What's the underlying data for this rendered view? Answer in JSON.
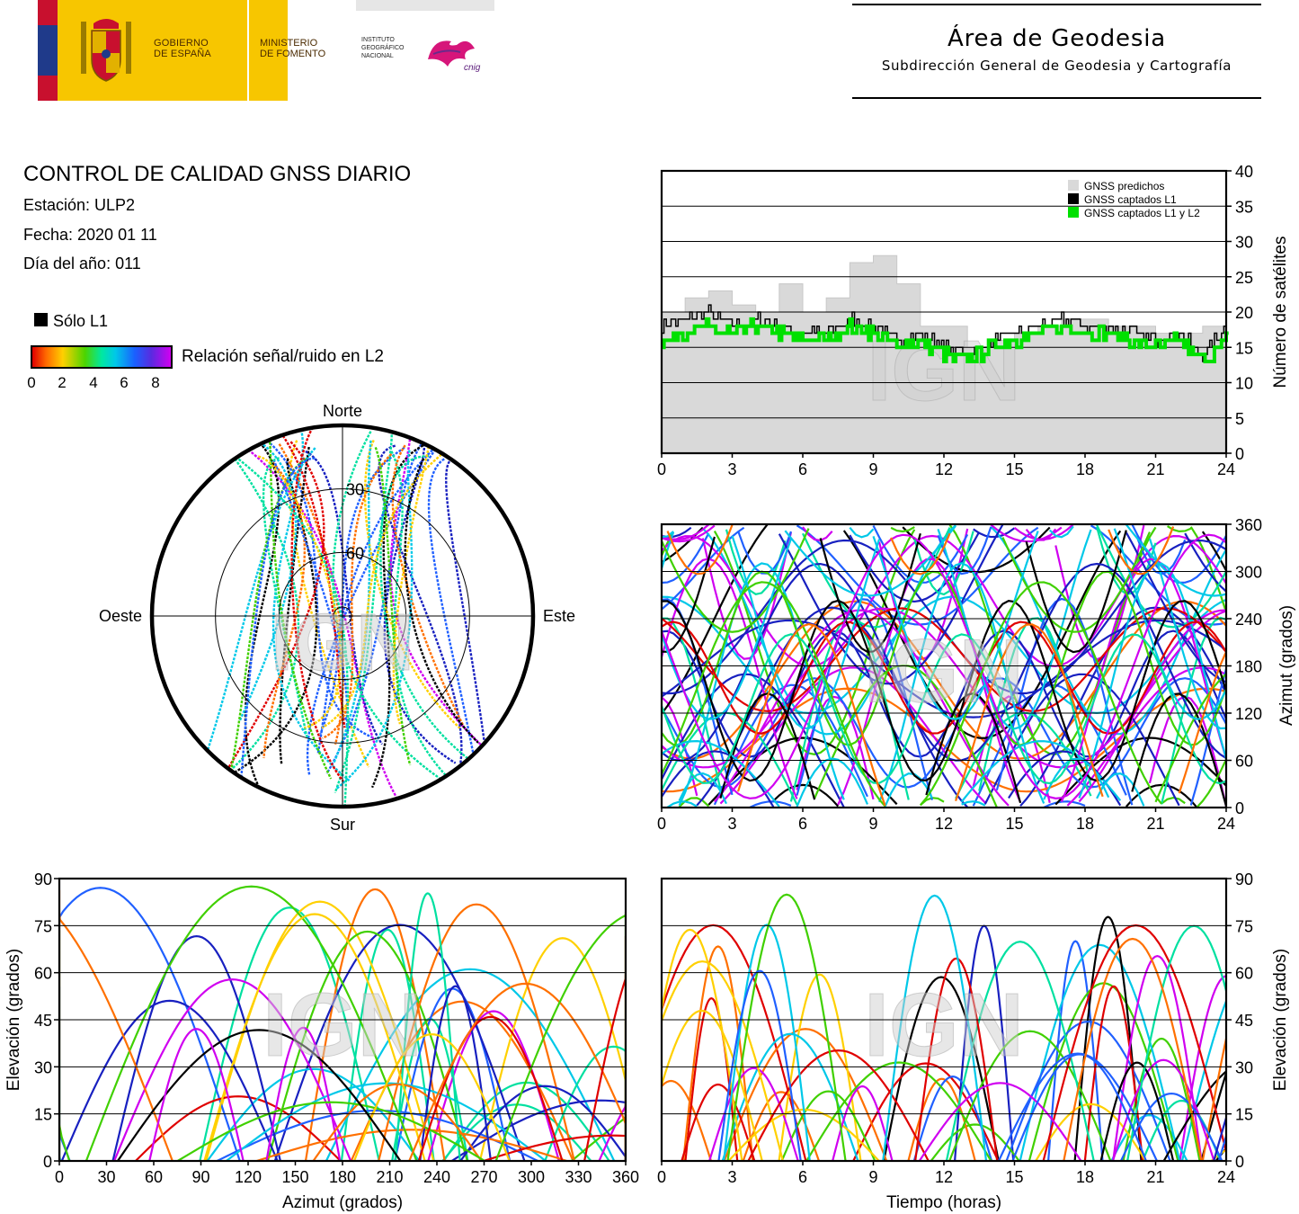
{
  "header": {
    "gov_line1": "GOBIERNO",
    "gov_line2": "DE ESPAÑA",
    "ministry_line1": "MINISTERIO",
    "ministry_line2": "DE FOMENTO",
    "institute_line1": "INSTITUTO",
    "institute_line2": "GEOGRÁFICO",
    "institute_line3": "NACIONAL",
    "cnig_text": "cnig",
    "area_title": "Área de Geodesia",
    "area_subtitle": "Subdirección General de Geodesia y Cartografía"
  },
  "info": {
    "title": "CONTROL DE CALIDAD GNSS DIARIO",
    "station": "Estación: ULP2",
    "date": "Fecha: 2020 01 11",
    "doy": "Día del año: 011"
  },
  "legend": {
    "l1_only": "Sólo L1",
    "snr_label": "Relación señal/ruido en L2",
    "snr_ticks": [
      "0",
      "2",
      "4",
      "6",
      "8"
    ],
    "l1_color": "#000000"
  },
  "watermark": "IGN",
  "chart_data": [
    {
      "id": "satellite-count",
      "type": "line",
      "ylabel": "Número de satélites",
      "ylim": [
        0,
        40
      ],
      "yticks": [
        0,
        5,
        10,
        15,
        20,
        25,
        30,
        35,
        40
      ],
      "xlim": [
        0,
        24
      ],
      "xticks": [
        0,
        3,
        6,
        9,
        12,
        15,
        18,
        21,
        24
      ],
      "grid": true,
      "legend_position": "top-right",
      "x": [
        0,
        1,
        2,
        3,
        4,
        5,
        6,
        7,
        8,
        9,
        10,
        11,
        12,
        13,
        14,
        15,
        16,
        17,
        18,
        19,
        20,
        21,
        22,
        23,
        24
      ],
      "series": [
        {
          "name": "GNSS predichos",
          "color": "#d9d9d9",
          "values": [
            20,
            22,
            23,
            21,
            20,
            24,
            20,
            22,
            27,
            28,
            24,
            18,
            18,
            15,
            16,
            17,
            18,
            19,
            19,
            18,
            18,
            17,
            17,
            18,
            19
          ]
        },
        {
          "name": "GNSS captados L1",
          "color": "#000000",
          "values": [
            18,
            19,
            20,
            18,
            19,
            18,
            17,
            17,
            19,
            18,
            16,
            17,
            15,
            14,
            16,
            17,
            18,
            19,
            18,
            18,
            17,
            16,
            17,
            14,
            18
          ]
        },
        {
          "name": "GNSS captados L1 y L2",
          "color": "#00e000",
          "values": [
            16,
            17,
            18,
            17,
            18,
            17,
            16,
            16,
            18,
            17,
            15,
            16,
            14,
            13,
            15,
            16,
            17,
            18,
            17,
            17,
            16,
            15,
            16,
            13,
            16
          ]
        }
      ]
    },
    {
      "id": "skyplot",
      "type": "scatter",
      "projection": "polar",
      "labels": {
        "north": "Norte",
        "south": "Sur",
        "east": "Este",
        "west": "Oeste"
      },
      "ring_labels": [
        "30",
        "60"
      ],
      "rings_elevation": [
        0,
        30,
        60
      ]
    },
    {
      "id": "azimuth-vs-time",
      "type": "scatter",
      "ylabel": "Azimut (grados)",
      "ylim": [
        0,
        360
      ],
      "yticks": [
        0,
        60,
        120,
        180,
        240,
        300,
        360
      ],
      "xlim": [
        0,
        24
      ],
      "xticks": [
        0,
        3,
        6,
        9,
        12,
        15,
        18,
        21,
        24
      ],
      "grid": true
    },
    {
      "id": "elevation-vs-azimuth",
      "type": "scatter",
      "xlabel": "Azimut (grados)",
      "ylabel": "Elevación (grados)",
      "xlim": [
        0,
        360
      ],
      "ylim": [
        0,
        90
      ],
      "xticks": [
        0,
        30,
        60,
        90,
        120,
        150,
        180,
        210,
        240,
        270,
        300,
        330,
        360
      ],
      "yticks": [
        0,
        15,
        30,
        45,
        60,
        75,
        90
      ],
      "grid": true
    },
    {
      "id": "elevation-vs-time",
      "type": "scatter",
      "xlabel": "Tiempo (horas)",
      "ylabel": "Elevación (grados)",
      "xlim": [
        0,
        24
      ],
      "ylim": [
        0,
        90
      ],
      "xticks": [
        0,
        3,
        6,
        9,
        12,
        15,
        18,
        21,
        24
      ],
      "yticks": [
        0,
        15,
        30,
        45,
        60,
        75,
        90
      ],
      "grid": true
    }
  ],
  "snr_colors": [
    "#e00000",
    "#ff7000",
    "#ffd000",
    "#40d000",
    "#00e0a0",
    "#00c8e8",
    "#2060ff",
    "#1820c0",
    "#d000f0",
    "#000000"
  ]
}
